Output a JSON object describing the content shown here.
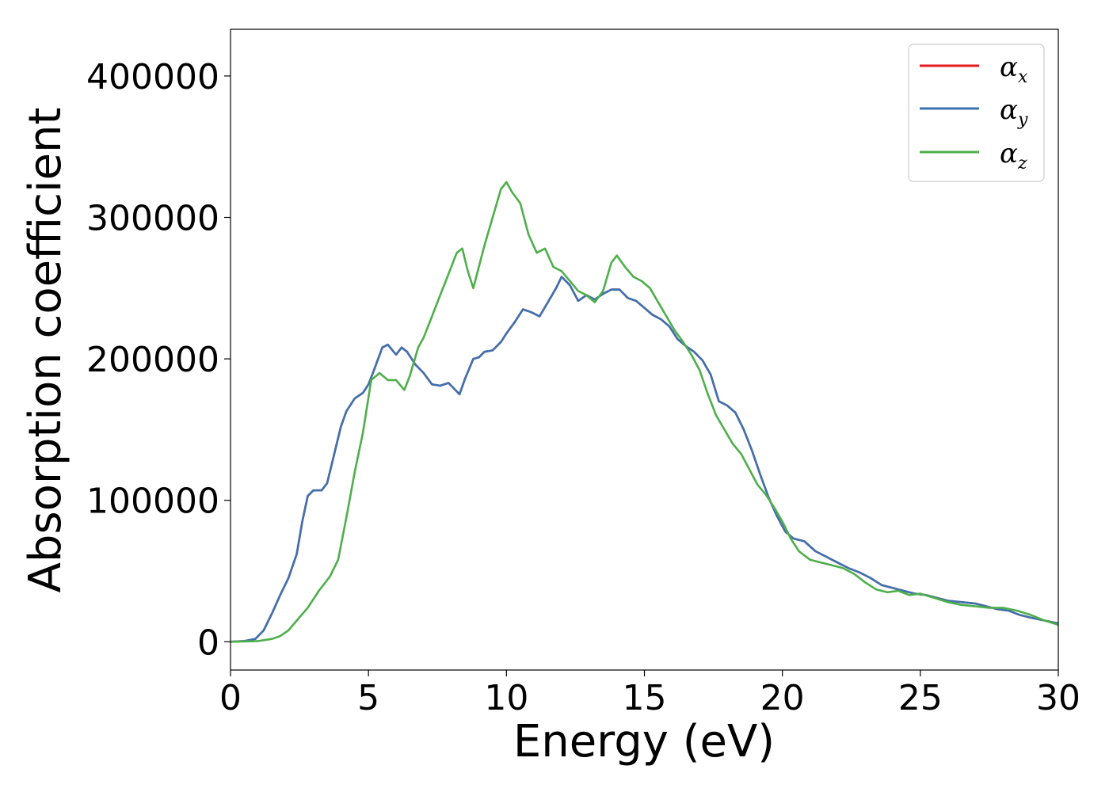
{
  "chart_data": {
    "type": "line",
    "xlabel": "Energy (eV)",
    "ylabel": "Absorption coefficient",
    "xlim": [
      0,
      30
    ],
    "ylim": [
      -20000,
      433000
    ],
    "xticks": [
      0,
      5,
      10,
      15,
      20,
      25,
      30
    ],
    "xtick_labels": [
      "0",
      "5",
      "10",
      "15",
      "20",
      "25",
      "30"
    ],
    "yticks": [
      0,
      100000,
      200000,
      300000,
      400000
    ],
    "ytick_labels": [
      "0",
      "100000",
      "200000",
      "300000",
      "400000"
    ],
    "grid": false,
    "legend_position": "top-right",
    "series": [
      {
        "name": "α",
        "subscript": "x",
        "color": "#e41a1c",
        "x": [
          0,
          0.5,
          0.9,
          1.2,
          1.5,
          1.8,
          2.1,
          2.4,
          2.6,
          2.8,
          3.0,
          3.3,
          3.5,
          3.7,
          4.0,
          4.2,
          4.5,
          4.8,
          5.0,
          5.2,
          5.5,
          5.7,
          6.0,
          6.2,
          6.4,
          6.7,
          7.0,
          7.3,
          7.6,
          7.9,
          8.1,
          8.3,
          8.5,
          8.8,
          9.0,
          9.2,
          9.5,
          9.8,
          10.0,
          10.3,
          10.6,
          10.9,
          11.2,
          11.5,
          11.8,
          12.0,
          12.3,
          12.6,
          12.9,
          13.2,
          13.5,
          13.8,
          14.1,
          14.4,
          14.7,
          15.0,
          15.3,
          15.6,
          15.9,
          16.2,
          16.5,
          16.8,
          17.1,
          17.4,
          17.7,
          18.0,
          18.3,
          18.6,
          18.9,
          19.2,
          19.5,
          19.8,
          20.1,
          20.4,
          20.8,
          21.2,
          21.6,
          22.0,
          22.4,
          22.8,
          23.2,
          23.6,
          24.0,
          24.4,
          24.8,
          25.2,
          25.6,
          26.0,
          26.5,
          27.0,
          27.4,
          27.8,
          28.2,
          28.6,
          29.0,
          29.5,
          30.0
        ],
        "values": [
          0,
          500,
          2000,
          8000,
          20000,
          33000,
          45000,
          62000,
          85000,
          103000,
          107000,
          107000,
          112000,
          128000,
          152000,
          163000,
          172000,
          176000,
          182000,
          192000,
          208000,
          210000,
          203000,
          208000,
          205000,
          196000,
          190000,
          182000,
          181000,
          183000,
          179000,
          175000,
          186000,
          200000,
          201000,
          205000,
          206000,
          212000,
          218000,
          226000,
          235000,
          233000,
          230000,
          240000,
          250000,
          258000,
          252000,
          241000,
          245000,
          242000,
          246000,
          249000,
          249000,
          243000,
          241000,
          236000,
          231000,
          228000,
          223000,
          214000,
          209000,
          205000,
          199000,
          189000,
          170000,
          167000,
          162000,
          150000,
          135000,
          118000,
          102000,
          89000,
          78000,
          73000,
          71000,
          64000,
          60000,
          56000,
          52000,
          49000,
          45000,
          40000,
          38000,
          36000,
          34000,
          33000,
          31000,
          29000,
          28000,
          27000,
          25000,
          23000,
          22000,
          19000,
          17000,
          15000,
          13000
        ]
      },
      {
        "name": "α",
        "subscript": "y",
        "color": "#3d72b0",
        "x": [
          0,
          0.5,
          0.9,
          1.2,
          1.5,
          1.8,
          2.1,
          2.4,
          2.6,
          2.8,
          3.0,
          3.3,
          3.5,
          3.7,
          4.0,
          4.2,
          4.5,
          4.8,
          5.0,
          5.2,
          5.5,
          5.7,
          6.0,
          6.2,
          6.4,
          6.7,
          7.0,
          7.3,
          7.6,
          7.9,
          8.1,
          8.3,
          8.5,
          8.8,
          9.0,
          9.2,
          9.5,
          9.8,
          10.0,
          10.3,
          10.6,
          10.9,
          11.2,
          11.5,
          11.8,
          12.0,
          12.3,
          12.6,
          12.9,
          13.2,
          13.5,
          13.8,
          14.1,
          14.4,
          14.7,
          15.0,
          15.3,
          15.6,
          15.9,
          16.2,
          16.5,
          16.8,
          17.1,
          17.4,
          17.7,
          18.0,
          18.3,
          18.6,
          18.9,
          19.2,
          19.5,
          19.8,
          20.1,
          20.4,
          20.8,
          21.2,
          21.6,
          22.0,
          22.4,
          22.8,
          23.2,
          23.6,
          24.0,
          24.4,
          24.8,
          25.2,
          25.6,
          26.0,
          26.5,
          27.0,
          27.4,
          27.8,
          28.2,
          28.6,
          29.0,
          29.5,
          30.0
        ],
        "values": [
          0,
          500,
          2000,
          8000,
          20000,
          33000,
          45000,
          62000,
          85000,
          103000,
          107000,
          107000,
          112000,
          128000,
          152000,
          163000,
          172000,
          176000,
          182000,
          192000,
          208000,
          210000,
          203000,
          208000,
          205000,
          196000,
          190000,
          182000,
          181000,
          183000,
          179000,
          175000,
          186000,
          200000,
          201000,
          205000,
          206000,
          212000,
          218000,
          226000,
          235000,
          233000,
          230000,
          240000,
          250000,
          258000,
          252000,
          241000,
          245000,
          242000,
          246000,
          249000,
          249000,
          243000,
          241000,
          236000,
          231000,
          228000,
          223000,
          214000,
          209000,
          205000,
          199000,
          189000,
          170000,
          167000,
          162000,
          150000,
          135000,
          118000,
          102000,
          89000,
          78000,
          73000,
          71000,
          64000,
          60000,
          56000,
          52000,
          49000,
          45000,
          40000,
          38000,
          36000,
          34000,
          33000,
          31000,
          29000,
          28000,
          27000,
          25000,
          23000,
          22000,
          19000,
          17000,
          15000,
          13000
        ]
      },
      {
        "name": "α",
        "subscript": "z",
        "color": "#4daf4a",
        "x": [
          0,
          0.5,
          1.0,
          1.5,
          1.8,
          2.1,
          2.4,
          2.8,
          3.2,
          3.6,
          3.9,
          4.2,
          4.5,
          4.8,
          5.1,
          5.4,
          5.7,
          6.0,
          6.3,
          6.5,
          6.8,
          7.0,
          7.3,
          7.6,
          7.9,
          8.2,
          8.4,
          8.6,
          8.8,
          9.0,
          9.2,
          9.5,
          9.8,
          10.0,
          10.2,
          10.5,
          10.8,
          11.1,
          11.4,
          11.7,
          12.0,
          12.3,
          12.6,
          12.9,
          13.2,
          13.5,
          13.8,
          14.0,
          14.3,
          14.6,
          14.9,
          15.2,
          15.5,
          15.8,
          16.1,
          16.4,
          16.7,
          17.0,
          17.3,
          17.6,
          17.9,
          18.2,
          18.5,
          18.8,
          19.1,
          19.4,
          19.7,
          20.0,
          20.3,
          20.6,
          21.0,
          21.4,
          21.8,
          22.2,
          22.6,
          23.0,
          23.4,
          23.8,
          24.2,
          24.6,
          25.0,
          25.5,
          26.0,
          26.5,
          27.0,
          27.5,
          28.0,
          28.5,
          29.0,
          29.5,
          30.0
        ],
        "values": [
          0,
          200,
          500,
          2000,
          4000,
          8000,
          15000,
          24000,
          36000,
          46000,
          58000,
          88000,
          120000,
          148000,
          185000,
          190000,
          185000,
          185000,
          178000,
          188000,
          208000,
          215000,
          230000,
          245000,
          260000,
          275000,
          278000,
          262000,
          250000,
          265000,
          280000,
          300000,
          320000,
          325000,
          318000,
          310000,
          288000,
          275000,
          278000,
          265000,
          262000,
          255000,
          248000,
          245000,
          240000,
          248000,
          268000,
          273000,
          265000,
          258000,
          255000,
          250000,
          240000,
          230000,
          220000,
          212000,
          203000,
          192000,
          175000,
          160000,
          150000,
          140000,
          133000,
          122000,
          111000,
          104000,
          95000,
          85000,
          73000,
          64000,
          58000,
          56000,
          54000,
          52000,
          48000,
          42000,
          37000,
          35000,
          36000,
          33000,
          34000,
          31000,
          28000,
          26000,
          25000,
          24000,
          24000,
          22000,
          19000,
          15000,
          12000
        ]
      }
    ]
  }
}
